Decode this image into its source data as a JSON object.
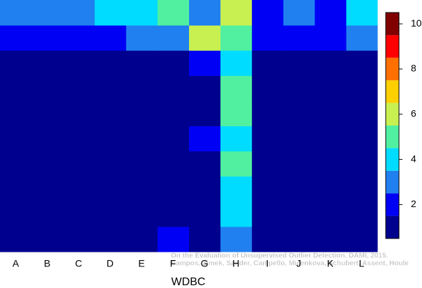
{
  "chart_data": {
    "type": "heatmap",
    "x_label": "WDBC",
    "categories": [
      "A",
      "B",
      "C",
      "D",
      "E",
      "F",
      "G",
      "H",
      "I",
      "J",
      "K",
      "L"
    ],
    "values": [
      [
        3,
        3,
        3,
        4,
        4,
        5,
        3,
        6,
        2,
        3,
        2,
        4
      ],
      [
        2,
        2,
        2,
        2,
        3,
        3,
        6,
        5,
        2,
        2,
        2,
        3
      ],
      [
        1,
        1,
        1,
        1,
        1,
        1,
        2,
        4,
        1,
        1,
        1,
        1
      ],
      [
        1,
        1,
        1,
        1,
        1,
        1,
        1,
        5,
        1,
        1,
        1,
        1
      ],
      [
        1,
        1,
        1,
        1,
        1,
        1,
        1,
        5,
        1,
        1,
        1,
        1
      ],
      [
        1,
        1,
        1,
        1,
        1,
        1,
        2,
        4,
        1,
        1,
        1,
        1
      ],
      [
        1,
        1,
        1,
        1,
        1,
        1,
        1,
        5,
        1,
        1,
        1,
        1
      ],
      [
        1,
        1,
        1,
        1,
        1,
        1,
        1,
        4,
        1,
        1,
        1,
        1
      ],
      [
        1,
        1,
        1,
        1,
        1,
        1,
        1,
        4,
        1,
        1,
        1,
        1
      ],
      [
        1,
        1,
        1,
        1,
        1,
        2,
        1,
        3,
        1,
        1,
        1,
        1
      ]
    ],
    "levels": [
      1,
      2,
      3,
      4,
      5,
      6,
      7,
      8,
      9,
      10
    ],
    "colors": [
      "#00008f",
      "#0000f5",
      "#2080f0",
      "#00dcff",
      "#50f0a0",
      "#c8f050",
      "#ffd000",
      "#ff7000",
      "#ff0000",
      "#800000"
    ],
    "colorbar_lim": [
      0.5,
      10.5
    ],
    "colorbar_ticks": [
      2,
      4,
      6,
      8,
      10
    ],
    "annotations": [
      "On the Evaluation of Unsupervised Outlier Detection. DAMI, 2015.",
      "Campos, Zimek, Sander, Campello, Micenkova, Schubert, Assent, Houle"
    ]
  }
}
